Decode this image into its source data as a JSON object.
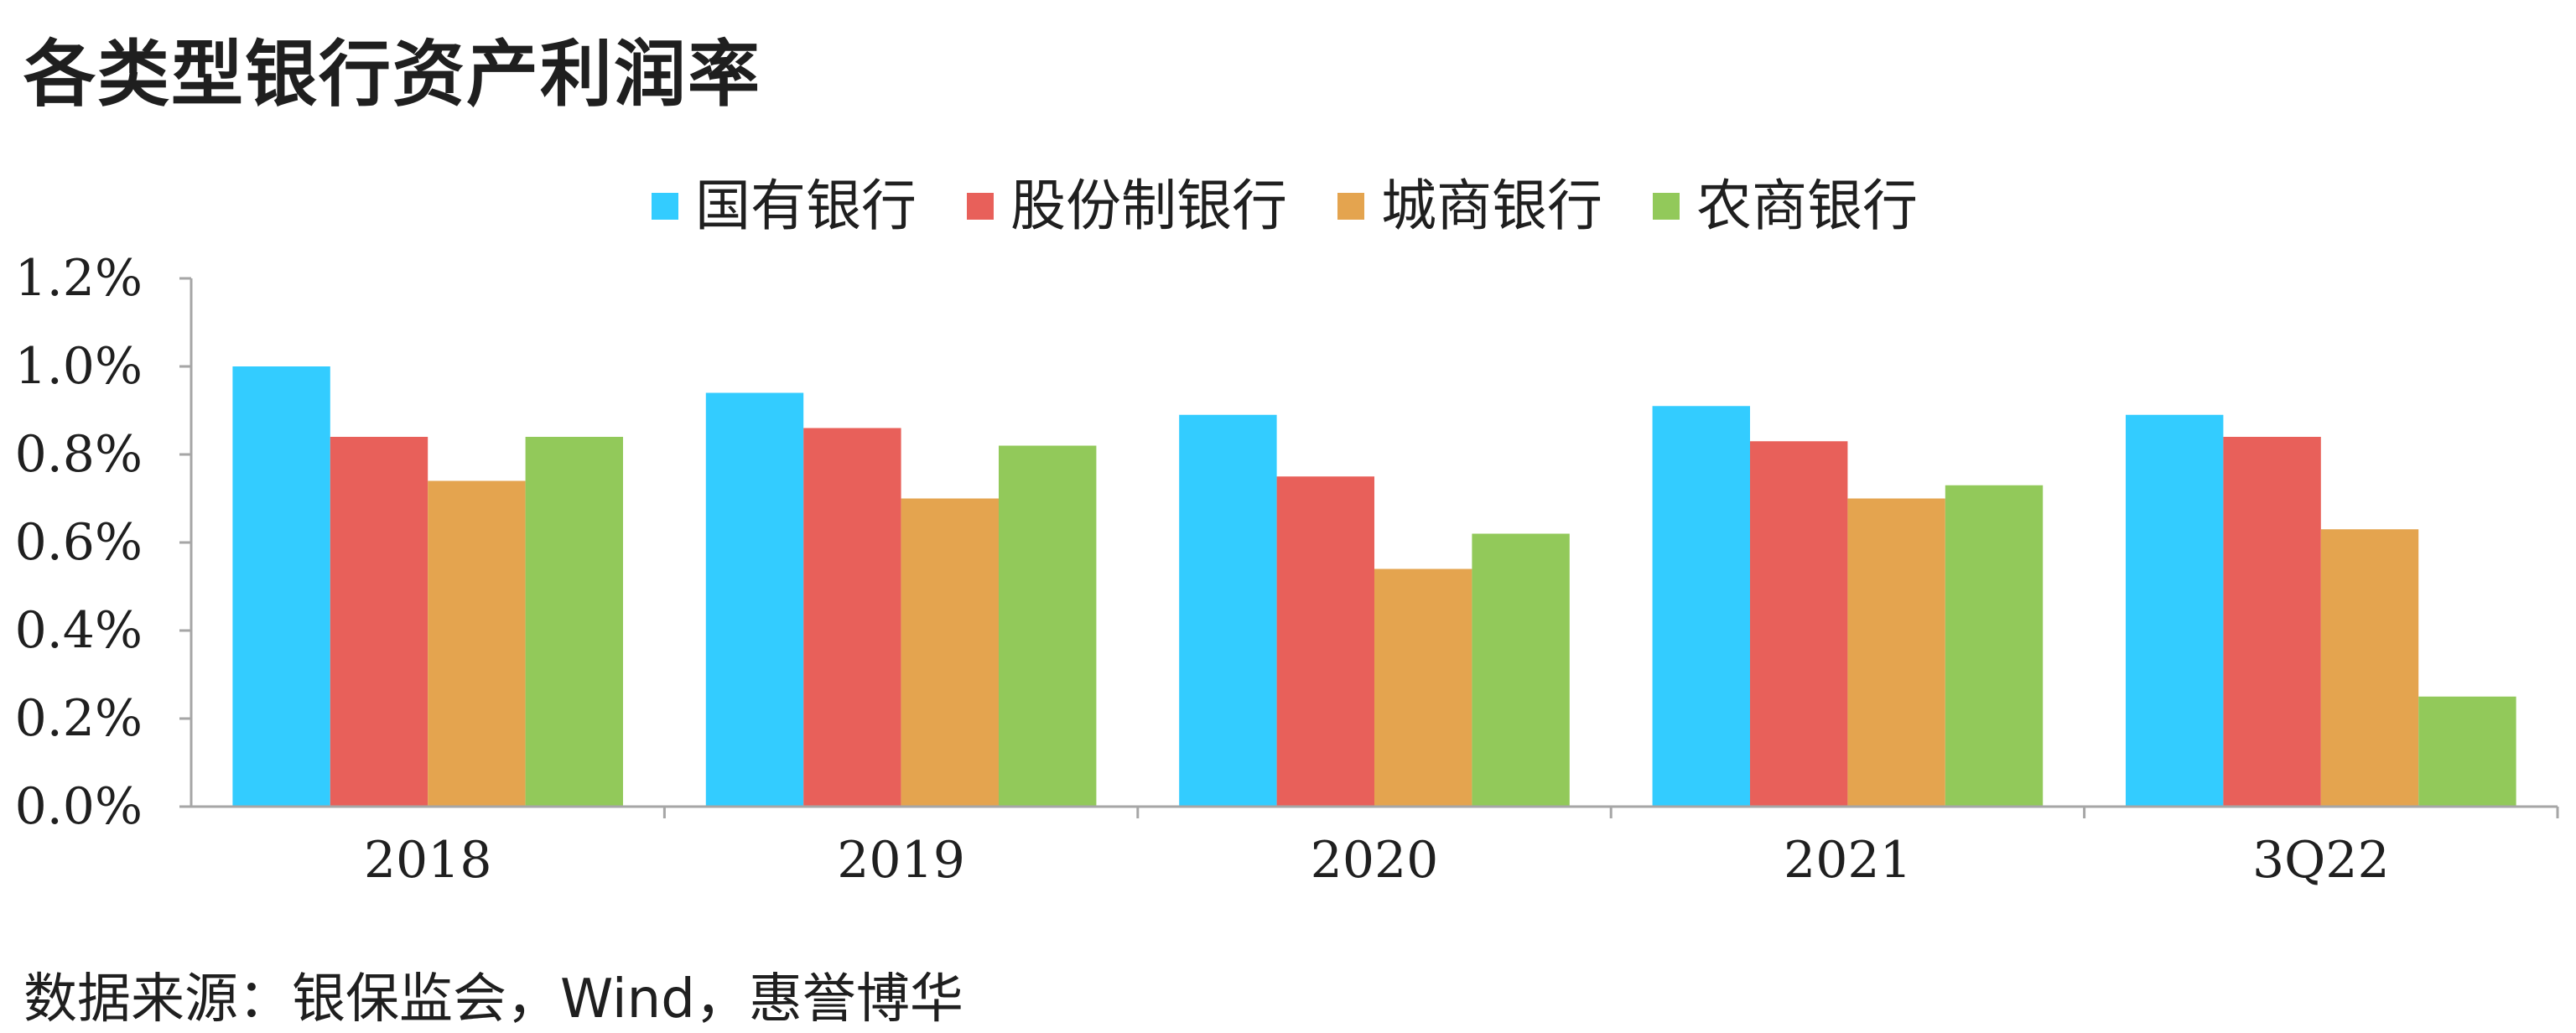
{
  "title": "各类型银行资产利润率",
  "source": "数据来源：银保监会，Wind，惠誉博华",
  "chart_data": {
    "type": "bar",
    "title": "各类型银行资产利润率",
    "xlabel": "",
    "ylabel": "",
    "categories": [
      "2018",
      "2019",
      "2020",
      "2021",
      "3Q22"
    ],
    "series": [
      {
        "name": "国有银行",
        "color": "#33CCFF",
        "values": [
          1.0,
          0.94,
          0.89,
          0.91,
          0.89
        ]
      },
      {
        "name": "股份制银行",
        "color": "#E8605A",
        "values": [
          0.84,
          0.86,
          0.75,
          0.83,
          0.84
        ]
      },
      {
        "name": "城商银行",
        "color": "#E4A44F",
        "values": [
          0.74,
          0.7,
          0.54,
          0.7,
          0.63
        ]
      },
      {
        "name": "农商银行",
        "color": "#92C95A",
        "values": [
          0.84,
          0.82,
          0.62,
          0.73,
          0.25
        ]
      }
    ],
    "ylim": [
      0,
      1.2
    ],
    "yticks": [
      0.0,
      0.2,
      0.4,
      0.6,
      0.8,
      1.0,
      1.2
    ],
    "ytick_labels": [
      "0.0%",
      "0.2%",
      "0.4%",
      "0.6%",
      "0.8%",
      "1.0%",
      "1.2%"
    ],
    "legend_position": "top",
    "grid": false
  }
}
